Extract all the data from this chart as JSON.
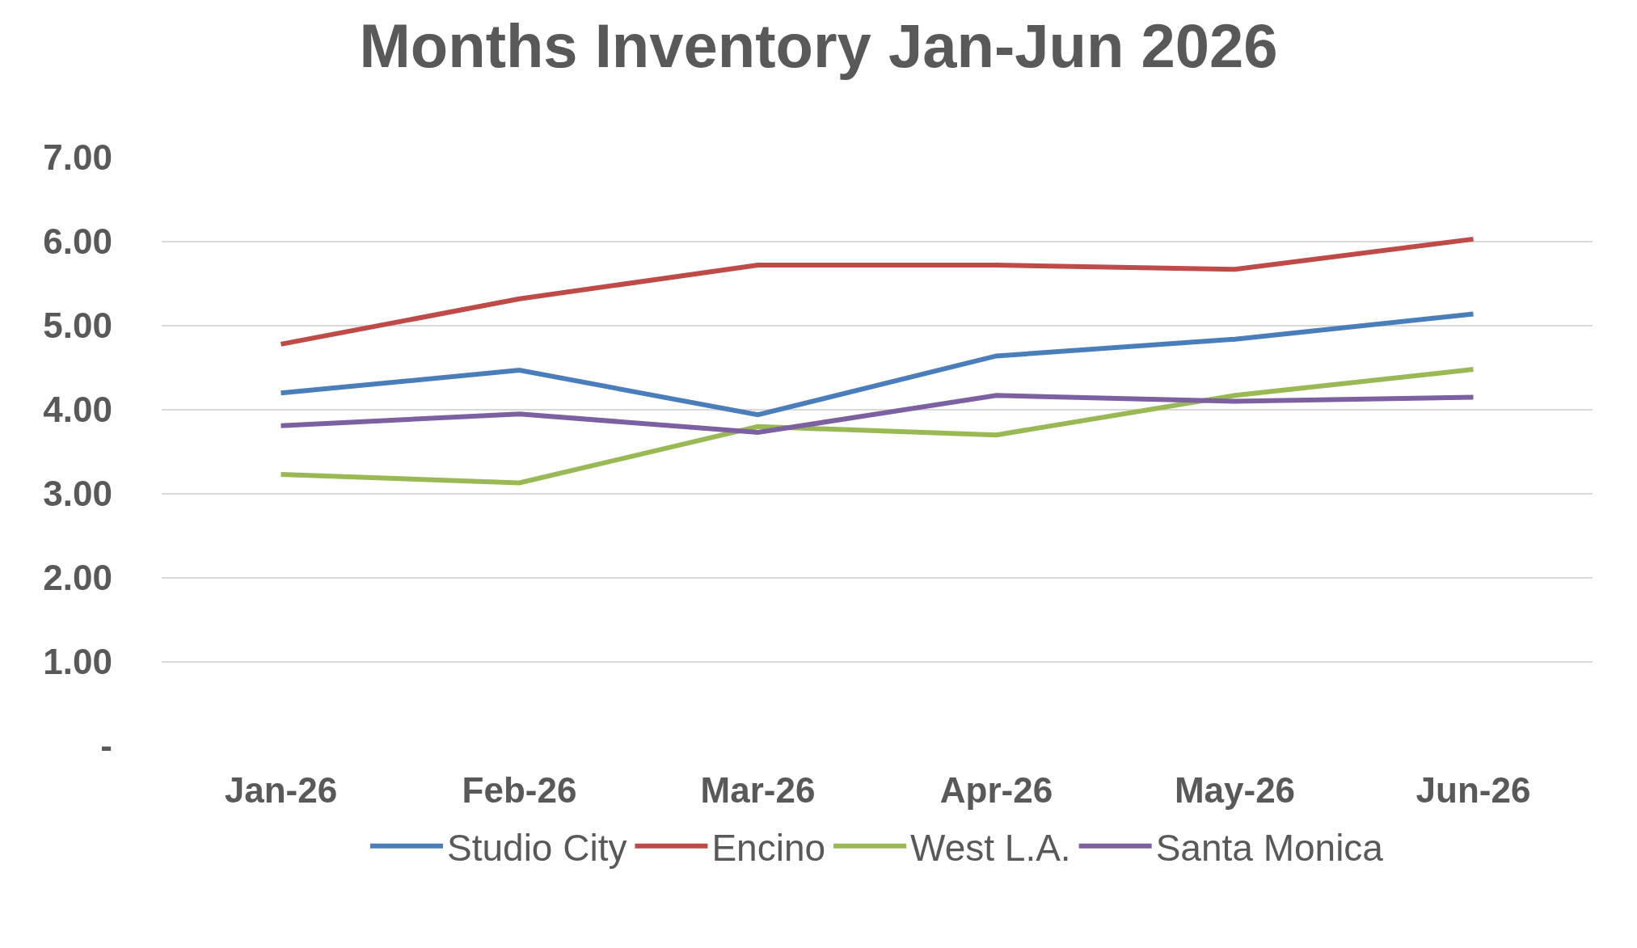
{
  "chart_data": {
    "type": "line",
    "title": "Months Inventory Jan-Jun 2026",
    "categories": [
      "Jan-26",
      "Feb-26",
      "Mar-26",
      "Apr-26",
      "May-26",
      "Jun-26"
    ],
    "series": [
      {
        "name": "Studio City",
        "color": "#4a7ebb",
        "values": [
          4.2,
          4.47,
          3.94,
          4.64,
          4.84,
          5.14
        ]
      },
      {
        "name": "Encino",
        "color": "#be4b48",
        "values": [
          4.78,
          5.32,
          5.72,
          5.72,
          5.67,
          6.03
        ]
      },
      {
        "name": "West L.A.",
        "color": "#98b954",
        "values": [
          3.23,
          3.13,
          3.8,
          3.7,
          4.17,
          4.48
        ]
      },
      {
        "name": "Santa Monica",
        "color": "#7d60a0",
        "values": [
          3.81,
          3.95,
          3.73,
          4.17,
          4.1,
          4.15
        ]
      }
    ],
    "ylim": [
      0,
      7
    ],
    "yticks": [
      {
        "value": 0,
        "label": "-"
      },
      {
        "value": 1,
        "label": "1.00"
      },
      {
        "value": 2,
        "label": "2.00"
      },
      {
        "value": 3,
        "label": "3.00"
      },
      {
        "value": 4,
        "label": "4.00"
      },
      {
        "value": 5,
        "label": "5.00"
      },
      {
        "value": 6,
        "label": "6.00"
      },
      {
        "value": 7,
        "label": "7.00"
      }
    ],
    "grid": "y",
    "legend": "bottom",
    "marker": "none",
    "line_style": "solid"
  }
}
